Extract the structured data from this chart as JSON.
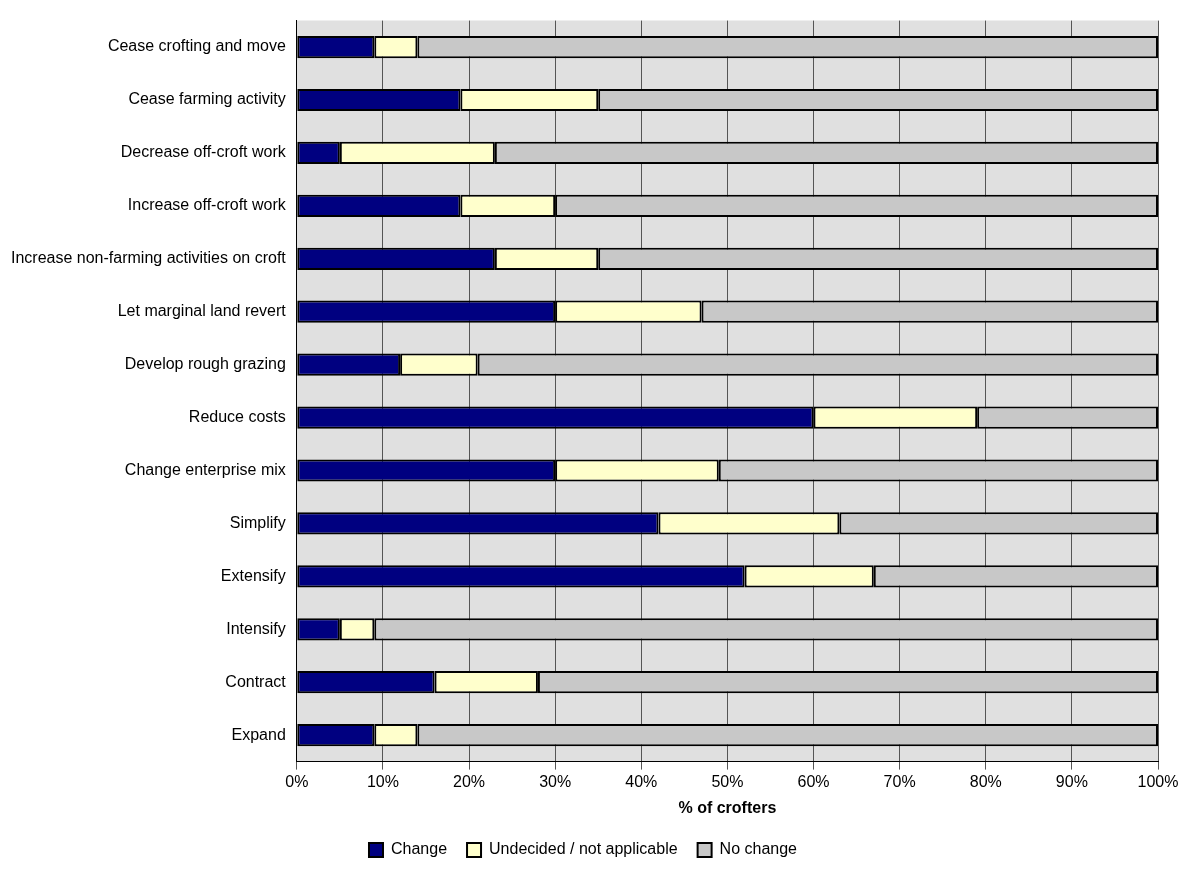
{
  "chart_data": {
    "type": "bar",
    "orientation": "horizontal",
    "stacked": true,
    "xlabel": "% of crofters",
    "categories": [
      "Cease crofting and move",
      "Cease farming activity",
      "Decrease off-croft work",
      "Increase off-croft work",
      "Increase non-farming activities on croft",
      "Let marginal land revert",
      "Develop rough grazing",
      "Reduce costs",
      "Change enterprise mix",
      "Simplify",
      "Extensify",
      "Intensify",
      "Contract",
      "Expand"
    ],
    "series": [
      {
        "name": "Change",
        "color": "#000080",
        "values": [
          9,
          19,
          5,
          19,
          23,
          30,
          12,
          60,
          30,
          42,
          52,
          5,
          16,
          9
        ]
      },
      {
        "name": "Undecided / not applicable",
        "color": "#ffffcc",
        "values": [
          5,
          16,
          18,
          11,
          12,
          17,
          9,
          19,
          19,
          21,
          15,
          4,
          12,
          5
        ]
      },
      {
        "name": "No change",
        "color": "#c8c8c8",
        "values": [
          86,
          65,
          77,
          70,
          65,
          53,
          79,
          21,
          51,
          37,
          33,
          91,
          72,
          86
        ]
      }
    ],
    "xlim": [
      0,
      100
    ],
    "xticks": [
      {
        "value": 0,
        "label": "0%"
      },
      {
        "value": 10,
        "label": "10%"
      },
      {
        "value": 20,
        "label": "20%"
      },
      {
        "value": 30,
        "label": "30%"
      },
      {
        "value": 40,
        "label": "40%"
      },
      {
        "value": 50,
        "label": "50%"
      },
      {
        "value": 60,
        "label": "60%"
      },
      {
        "value": 70,
        "label": "70%"
      },
      {
        "value": 80,
        "label": "80%"
      },
      {
        "value": 90,
        "label": "90%"
      },
      {
        "value": 100,
        "label": "100%"
      }
    ],
    "grid": "x",
    "legend": "bottom"
  }
}
